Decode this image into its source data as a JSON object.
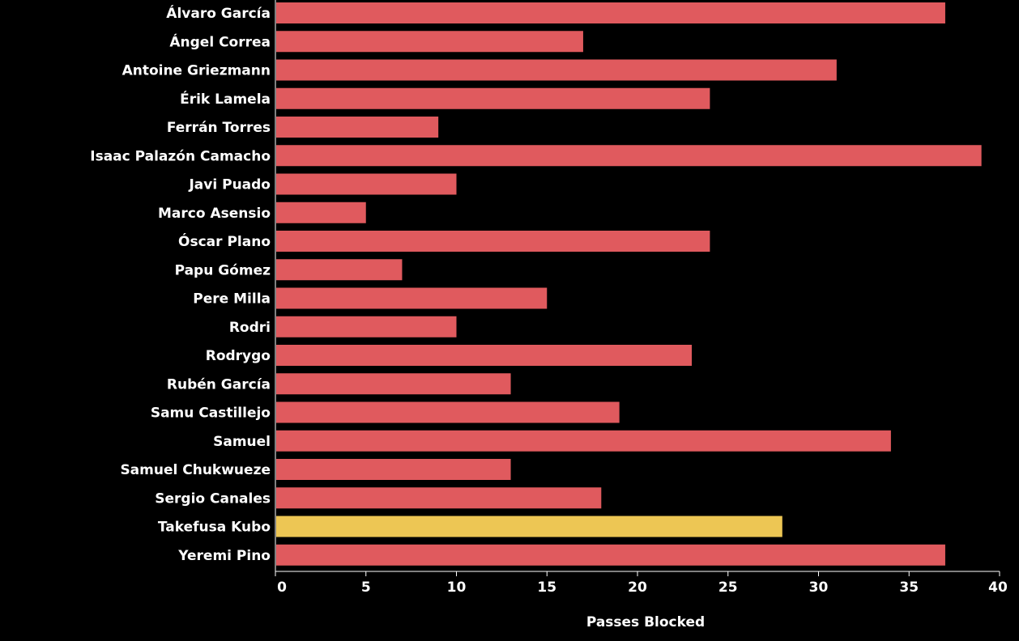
{
  "chart_data": {
    "type": "bar",
    "orientation": "horizontal",
    "categories": [
      "Álvaro García",
      "Ángel Correa",
      "Antoine Griezmann",
      "Érik Lamela",
      "Ferrán Torres",
      "Isaac Palazón Camacho",
      "Javi Puado",
      "Marco Asensio",
      "Óscar Plano",
      "Papu Gómez",
      "Pere Milla",
      "Rodri",
      "Rodrygo",
      "Rubén García",
      "Samu Castillejo",
      "Samuel",
      "Samuel Chukwueze",
      "Sergio Canales",
      "Takefusa Kubo",
      "Yeremi Pino"
    ],
    "values": [
      37,
      17,
      31,
      24,
      9,
      39,
      10,
      5,
      24,
      7,
      15,
      10,
      23,
      13,
      19,
      34,
      13,
      18,
      28,
      37
    ],
    "highlight": "Takefusa Kubo",
    "xlabel": "Passes Blocked",
    "ylabel": "",
    "xlim": [
      0,
      40
    ],
    "xticks": [
      0,
      5,
      10,
      15,
      20,
      25,
      30,
      35,
      40
    ],
    "grid": false,
    "colors": {
      "bar": "#e05a5e",
      "highlight": "#edc654",
      "background": "#000000",
      "text": "#ffffff",
      "axis": "#ffffff"
    }
  }
}
